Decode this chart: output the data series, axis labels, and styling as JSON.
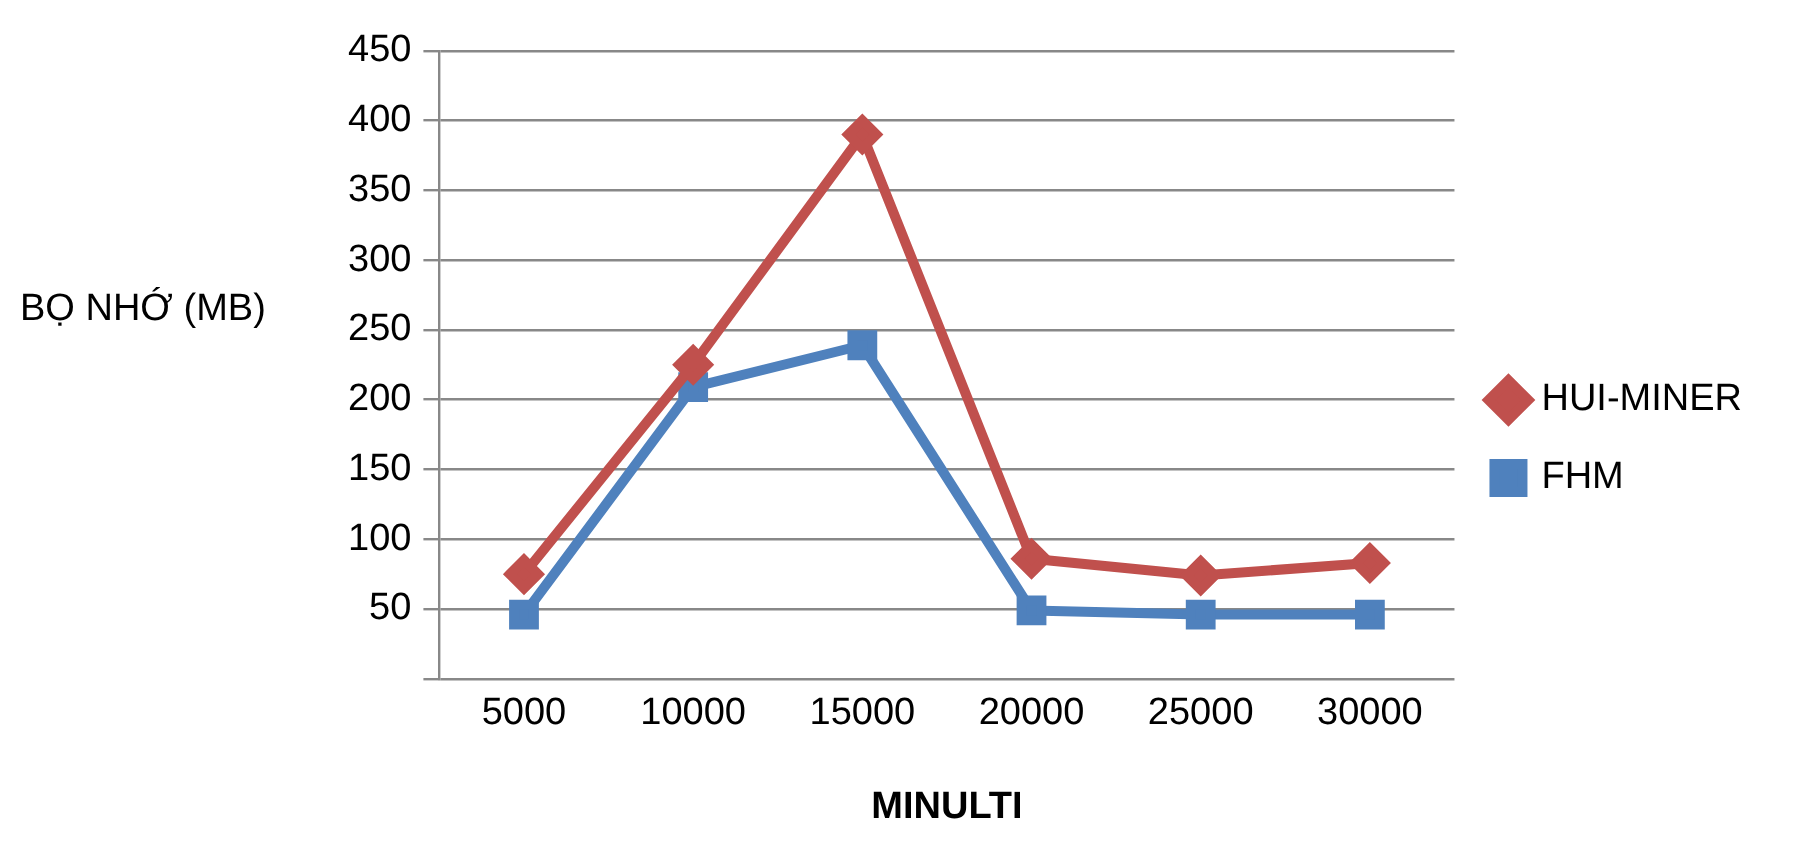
{
  "chart_data": {
    "type": "line",
    "xlabel": "MINULTI",
    "ylabel": "BỌ NHỚ (MB)",
    "categories": [
      "5000",
      "10000",
      "15000",
      "20000",
      "25000",
      "30000"
    ],
    "series": [
      {
        "name": "HUI-MINER",
        "color": "#c0504d",
        "marker": "diamond",
        "values": [
          75,
          225,
          390,
          86,
          74,
          83
        ]
      },
      {
        "name": "FHM",
        "color": "#4f81bd",
        "marker": "square",
        "values": [
          46,
          209,
          239,
          49,
          46,
          46
        ]
      }
    ],
    "ylim": [
      0,
      450
    ],
    "yticks": [
      {
        "value": 0,
        "label": null
      },
      50,
      100,
      150,
      200,
      250,
      300,
      350,
      400,
      450
    ],
    "grid": "y",
    "legend": "right",
    "line_style": "solid"
  }
}
